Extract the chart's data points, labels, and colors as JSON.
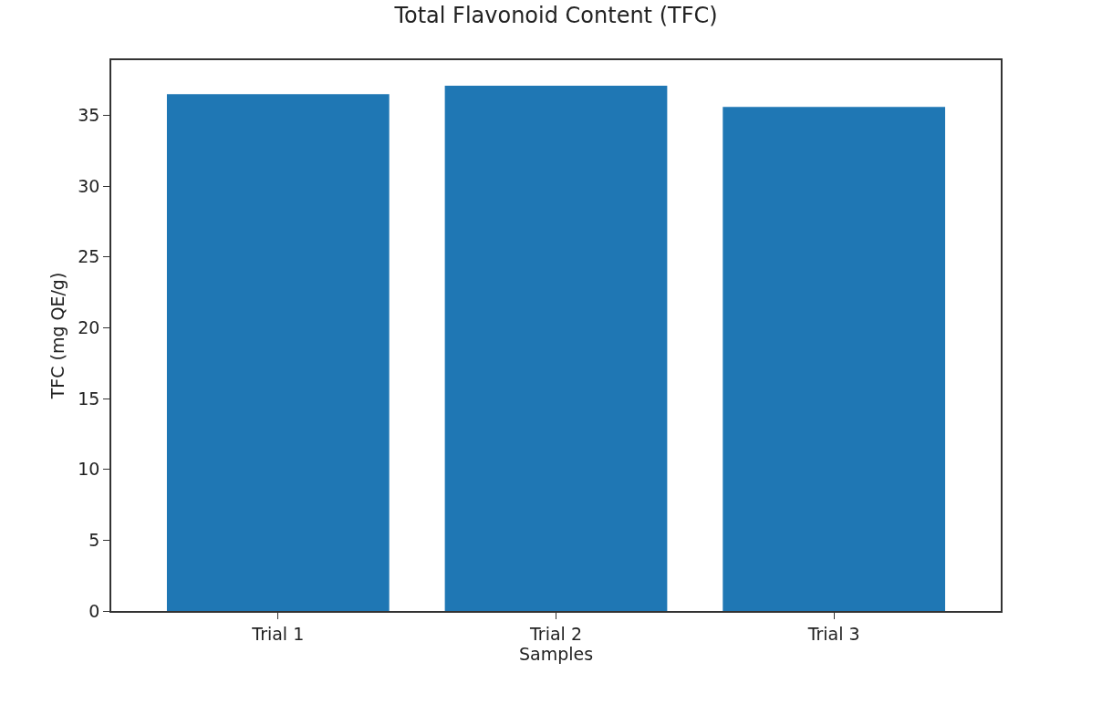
{
  "chart_data": {
    "type": "bar",
    "title": "Total Flavonoid Content (TFC)",
    "xlabel": "Samples",
    "ylabel": "TFC (mg QE/g)",
    "categories": [
      "Trial 1",
      "Trial 2",
      "Trial 3"
    ],
    "values": [
      36.5,
      37.1,
      35.6
    ],
    "color": "#1f77b4",
    "ylim": [
      0,
      38.9
    ],
    "yticks": [
      0,
      5,
      10,
      15,
      20,
      25,
      30,
      35
    ],
    "grid": false
  }
}
